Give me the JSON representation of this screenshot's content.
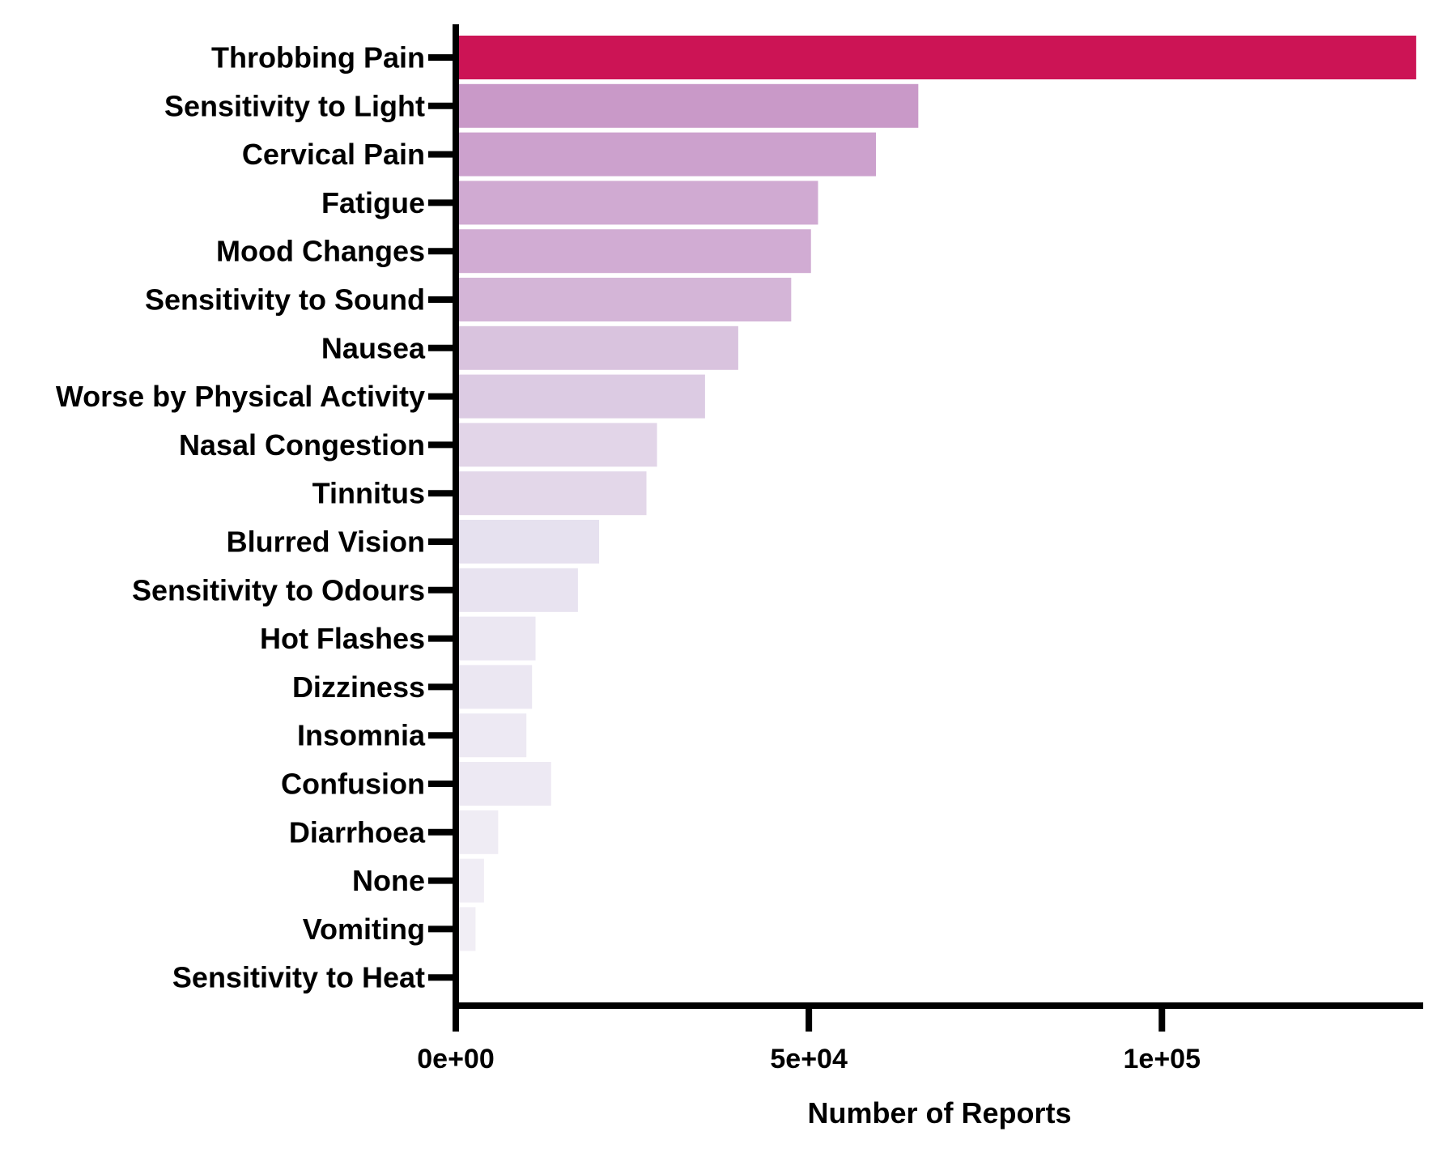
{
  "chart_data": {
    "type": "bar",
    "orientation": "horizontal",
    "categories": [
      "Throbbing Pain",
      "Sensitivity to Light",
      "Cervical Pain",
      "Fatigue",
      "Mood Changes",
      "Sensitivity to Sound",
      "Nausea",
      "Worse by Physical Activity",
      "Nasal Congestion",
      "Tinnitus",
      "Blurred Vision",
      "Sensitivity to Odours",
      "Hot Flashes",
      "Dizziness",
      "Insomnia",
      "Confusion",
      "Diarrhoea",
      "None",
      "Vomiting",
      "Sensitivity to Heat"
    ],
    "values": [
      136000,
      65500,
      59500,
      51300,
      50300,
      47500,
      40000,
      35300,
      28500,
      27000,
      20300,
      17300,
      11300,
      10800,
      10000,
      13500,
      6000,
      4000,
      2800,
      0
    ],
    "bar_colors": [
      "#cc1455",
      "#c999c8",
      "#cca1cd",
      "#d0aad2",
      "#d1acd3",
      "#d4b5d7",
      "#d9c3de",
      "#dccbe3",
      "#e2d5e8",
      "#e3d7e9",
      "#e6e1ef",
      "#e8e3f0",
      "#ebe7f2",
      "#ebe7f2",
      "#ede9f3",
      "#ede9f3",
      "#efecf4",
      "#f0edf5",
      "#f1eef5",
      "#f2f0f6"
    ],
    "xlabel": "Number of Reports",
    "ylabel": "",
    "xlim": [
      0,
      137000
    ],
    "x_ticks": [
      0,
      50000,
      100000
    ],
    "x_tick_labels": [
      "0e+00",
      "5e+04",
      "1e+05"
    ],
    "grid": false,
    "legend": "none"
  }
}
